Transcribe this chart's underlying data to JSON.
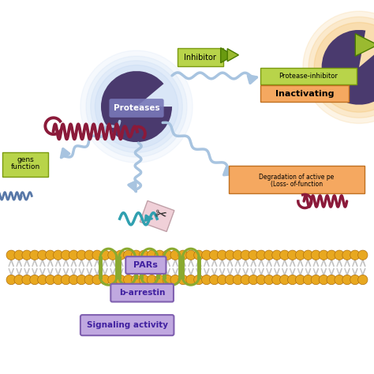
{
  "bg_color": "#ffffff",
  "protease_fill_color": "#4a3a6e",
  "protease_glow_color": "#aac8f0",
  "protease_label": "Proteases",
  "inhibitor_label": "Inhibitor",
  "inactivating_label": "Inactivating",
  "protease_inhibitor_label": "Protease-inhibitor",
  "pars_label": "PARs",
  "b_arrestin_label": "b-arrestin",
  "signaling_label": "Signaling activity",
  "green_box_color": "#b8d44a",
  "orange_box_color": "#f5a860",
  "purple_box_color": "#c0a8e0",
  "arrow_color": "#a8c4e0",
  "coil_color": "#8b1a3a",
  "teal_color": "#30a0b0",
  "loop_color": "#8aaa30",
  "ball_color": "#e8a820"
}
